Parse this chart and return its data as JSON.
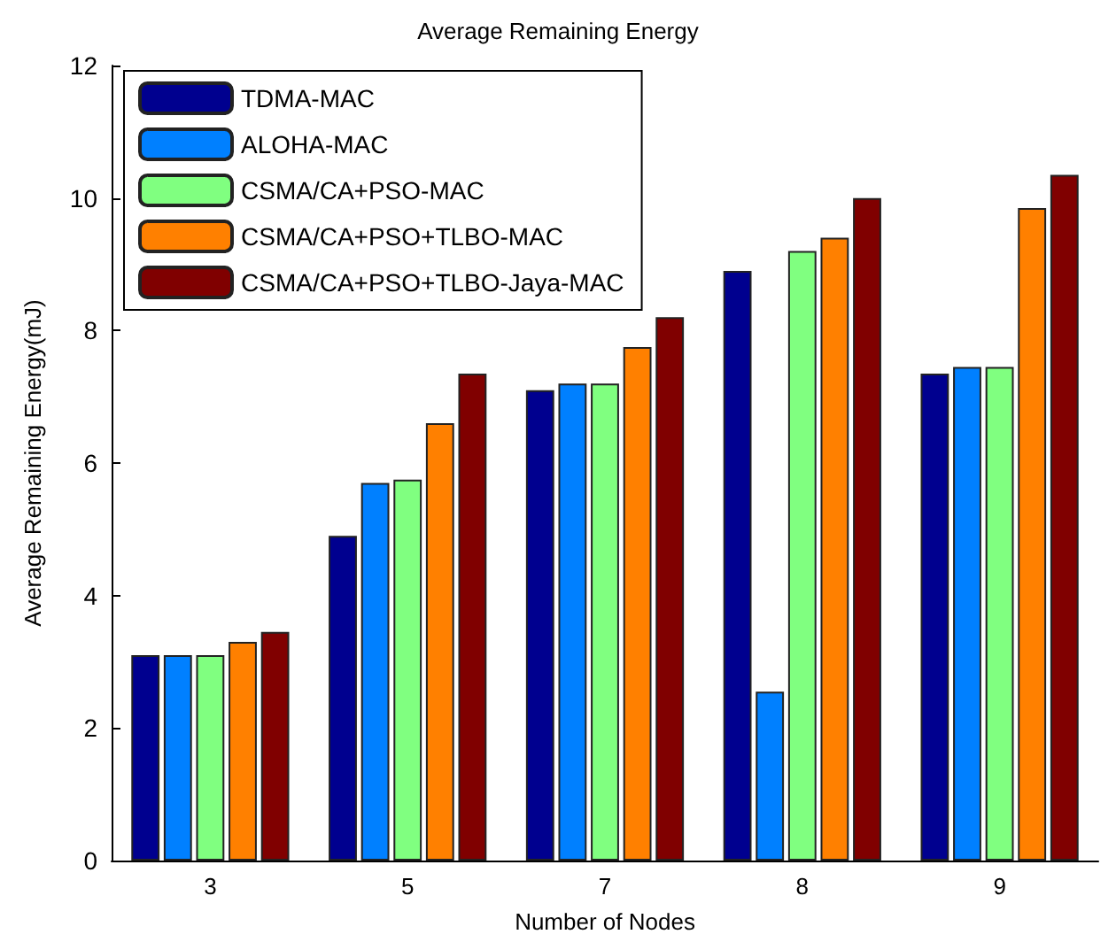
{
  "chart_data": {
    "type": "bar",
    "title": "Average Remaining Energy",
    "xlabel": "Number of Nodes",
    "ylabel": "Average Remaining Energy(mJ)",
    "categories": [
      "3",
      "5",
      "7",
      "8",
      "9"
    ],
    "series": [
      {
        "name": "TDMA-MAC",
        "color": "#00008f",
        "values": [
          3.1,
          4.9,
          7.1,
          8.9,
          7.35
        ]
      },
      {
        "name": "ALOHA-MAC",
        "color": "#0080ff",
        "values": [
          3.1,
          5.7,
          7.2,
          2.55,
          7.45
        ]
      },
      {
        "name": "CSMA/CA+PSO-MAC",
        "color": "#80ff80",
        "values": [
          3.1,
          5.75,
          7.2,
          9.2,
          7.45
        ]
      },
      {
        "name": "CSMA/CA+PSO+TLBO-MAC",
        "color": "#ff8000",
        "values": [
          3.3,
          6.6,
          7.75,
          9.4,
          9.85
        ]
      },
      {
        "name": "CSMA/CA+PSO+TLBO-Jaya-MAC",
        "color": "#800000",
        "values": [
          3.45,
          7.35,
          8.2,
          10.0,
          10.35
        ]
      }
    ],
    "ylim": [
      0,
      12
    ],
    "yticks": [
      0,
      2,
      4,
      6,
      8,
      10,
      12
    ],
    "grid": false,
    "legend": "top left"
  }
}
